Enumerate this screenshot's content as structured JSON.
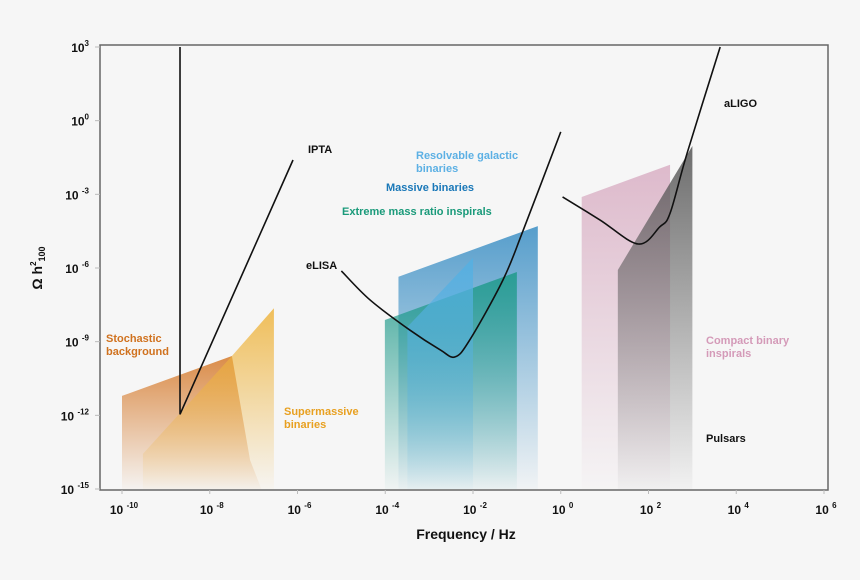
{
  "chart_data": {
    "type": "area",
    "xlabel": "Frequency / Hz",
    "ylabel": "Ω h²₁₀₀",
    "ylabel_main": "Ω h",
    "ylabel_sup": "2",
    "ylabel_sub": "100",
    "x_scale": "log",
    "y_scale": "log",
    "xlim": [
      1e-10,
      1000000.0
    ],
    "ylim": [
      1e-15,
      1000.0
    ],
    "grid": false,
    "x_ticks": [
      {
        "base": "10",
        "exp": "-10",
        "value": 1e-10
      },
      {
        "base": "10",
        "exp": "-8",
        "value": 1e-08
      },
      {
        "base": "10",
        "exp": "-6",
        "value": 1e-06
      },
      {
        "base": "10",
        "exp": "-4",
        "value": 0.0001
      },
      {
        "base": "10",
        "exp": "-2",
        "value": 0.01
      },
      {
        "base": "10",
        "exp": "0",
        "value": 1
      },
      {
        "base": "10",
        "exp": "2",
        "value": 100.0
      },
      {
        "base": "10",
        "exp": "4",
        "value": 10000.0
      },
      {
        "base": "10",
        "exp": "6",
        "value": 1000000.0
      }
    ],
    "y_ticks": [
      {
        "base": "10",
        "exp": "3",
        "value": 1000.0
      },
      {
        "base": "10",
        "exp": "0",
        "value": 1
      },
      {
        "base": "10",
        "exp": "-3",
        "value": 0.001
      },
      {
        "base": "10",
        "exp": "-6",
        "value": 1e-06
      },
      {
        "base": "10",
        "exp": "-9",
        "value": 1e-09
      },
      {
        "base": "10",
        "exp": "-12",
        "value": 1e-12
      },
      {
        "base": "10",
        "exp": "-15",
        "value": 1e-15
      }
    ],
    "regions": [
      {
        "name": "Stochastic background",
        "color": "#d5792a",
        "points": [
          [
            1e-10,
            6.2e-12
          ],
          [
            3.2e-08,
            2.6e-10
          ],
          [
            8.3e-08,
            1.5e-14
          ],
          [
            1.5e-07,
            1e-15
          ],
          [
            1e-10,
            1e-15
          ]
        ]
      },
      {
        "name": "Supermassive binaries",
        "color": "#eeb43e",
        "points": [
          [
            3e-10,
            2.7e-14
          ],
          [
            3.2e-08,
            2.6e-10
          ],
          [
            2.9e-07,
            2.3e-08
          ],
          [
            2.9e-07,
            1e-15
          ],
          [
            3e-10,
            1e-15
          ]
        ]
      },
      {
        "name": "Massive binaries",
        "color": "#3a8ec4",
        "points": [
          [
            0.0002,
            4.4e-07
          ],
          [
            0.3,
            5.1e-05
          ],
          [
            0.3,
            1e-15
          ],
          [
            0.0002,
            1e-15
          ]
        ]
      },
      {
        "name": "Extreme mass ratio inspirals",
        "color": "#1e9a8a",
        "points": [
          [
            9.8e-05,
            7.6e-09
          ],
          [
            0.1,
            6.9e-07
          ],
          [
            0.1,
            1e-15
          ],
          [
            9.8e-05,
            1e-15
          ]
        ]
      },
      {
        "name": "Resolvable galactic binaries",
        "color": "#55b0e2",
        "points": [
          [
            0.00032,
            4e-09
          ],
          [
            0.01,
            2.6e-06
          ],
          [
            0.01,
            1e-15
          ],
          [
            0.00032,
            1e-15
          ]
        ]
      },
      {
        "name": "Compact binary inspirals",
        "color": "#d9afc4",
        "points": [
          [
            3.0,
            0.00078
          ],
          [
            310,
            0.016
          ],
          [
            310,
            1e-15
          ],
          [
            3.0,
            1e-15
          ]
        ]
      },
      {
        "name": "Pulsars",
        "color": "#555555",
        "points": [
          [
            20,
            8.3e-07
          ],
          [
            1000,
            0.093
          ],
          [
            1000,
            1e-15
          ],
          [
            20,
            1e-15
          ]
        ]
      }
    ],
    "curves": [
      {
        "name": "IPTA",
        "points": [
          [
            2.1e-09,
            1000.0
          ],
          [
            2.1e-09,
            1.1e-12
          ],
          [
            7.9e-07,
            0.025
          ]
        ]
      },
      {
        "name": "eLISA",
        "points": [
          [
            1e-05,
            7.6e-07
          ],
          [
            4.5e-05,
            5e-08
          ],
          [
            0.00036,
            3e-09
          ],
          [
            0.0018,
            4.6e-10
          ],
          [
            0.0039,
            2.4e-10
          ],
          [
            0.0085,
            1.2e-09
          ],
          [
            0.048,
            3.2e-07
          ],
          [
            0.14,
            3.5e-05
          ],
          [
            1.0,
            0.35
          ]
        ]
      },
      {
        "name": "aLIGO",
        "points": [
          [
            1.1,
            0.00078
          ],
          [
            7.8,
            9.1e-05
          ],
          [
            58,
            9.5e-06
          ],
          [
            180,
            4.7e-05
          ],
          [
            310,
            0.00017
          ],
          [
            760,
            0.048
          ],
          [
            4300,
            1000.0
          ]
        ]
      }
    ],
    "labels": {
      "stochastic_1": "Stochastic",
      "stochastic_2": "background",
      "supermassive_1": "Supermassive",
      "supermassive_2": "binaries",
      "resolvable_1": "Resolvable galactic",
      "resolvable_2": "binaries",
      "massive": "Massive binaries",
      "emri": "Extreme mass ratio inspirals",
      "compact_1": "Compact binary",
      "compact_2": "inspirals",
      "pulsars": "Pulsars",
      "ipta": "IPTA",
      "elisa": "eLISA",
      "aligo": "aLIGO"
    },
    "label_colors": {
      "stochastic": "#d0721f",
      "supermassive": "#e8a020",
      "resolvable": "#5cb0e4",
      "massive": "#1a78b8",
      "emri": "#1a9a7a",
      "compact": "#d49ab8",
      "detector": "#111111"
    }
  }
}
